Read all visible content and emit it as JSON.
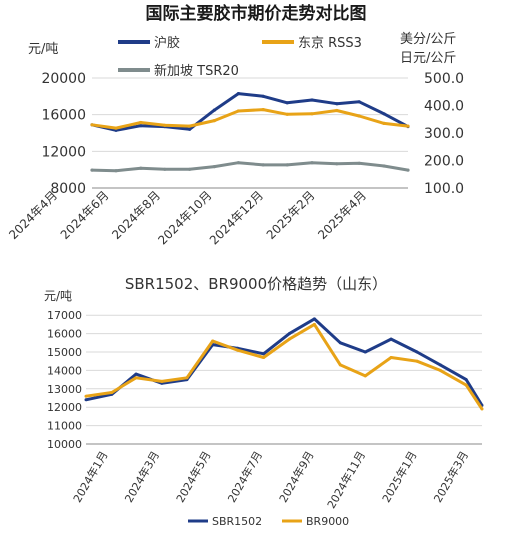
{
  "chart_data": [
    {
      "type": "line",
      "title": "国际主要胶市期价走势对比图",
      "ylabel_left": "元/吨",
      "ylabel_right_line1": "美分/公斤",
      "ylabel_right_line2": "日元/公斤",
      "y_left_ticks": [
        "20000",
        "16000",
        "12000",
        "8000"
      ],
      "y_right_ticks": [
        "500.0",
        "400.0",
        "300.0",
        "200.0",
        "100.0"
      ],
      "ylim_left": [
        8000,
        20000
      ],
      "ylim_right": [
        100,
        500
      ],
      "x_ticks": [
        "2024年4月",
        "2024年6月",
        "2024年8月",
        "2024年10月",
        "2024年12月",
        "2025年2月",
        "2025年4月"
      ],
      "x": [
        "2024-04-01",
        "2024-05-01",
        "2024-06-01",
        "2024-07-01",
        "2024-08-01",
        "2024-09-01",
        "2024-10-01",
        "2024-11-01",
        "2024-12-01",
        "2025-01-01",
        "2025-02-01",
        "2025-03-01",
        "2025-04-01",
        "2025-05-01"
      ],
      "grid": true,
      "legend_position": "top",
      "series": [
        {
          "name": "沪胶",
          "axis": "left",
          "color": "#1f3c88",
          "values": [
            14900,
            14300,
            14800,
            14700,
            14400,
            16500,
            18300,
            18000,
            17300,
            17600,
            17200,
            17400,
            16100,
            14700
          ]
        },
        {
          "name": "东京 RSS3",
          "axis": "right",
          "color": "#e8a317",
          "values": [
            330,
            318,
            338,
            328,
            325,
            345,
            380,
            385,
            368,
            370,
            382,
            362,
            335,
            325
          ]
        },
        {
          "name": "新加坡 TSR20",
          "axis": "right",
          "color": "#7f8c8d",
          "values": [
            165,
            163,
            172,
            168,
            168,
            178,
            192,
            184,
            184,
            192,
            188,
            190,
            180,
            165
          ]
        }
      ]
    },
    {
      "type": "line",
      "title": "SBR1502、BR9000价格趋势（山东）",
      "ylabel": "元/吨",
      "y_ticks": [
        "17000",
        "16000",
        "15000",
        "14000",
        "13000",
        "12000",
        "11000",
        "10000"
      ],
      "ylim": [
        10000,
        17500
      ],
      "x_ticks": [
        "2024年1月",
        "2024年3月",
        "2024年5月",
        "2024年7月",
        "2024年9月",
        "2024年11月",
        "2025年1月",
        "2025年3月"
      ],
      "x": [
        "2024-01-01",
        "2024-02-01",
        "2024-03-01",
        "2024-04-01",
        "2024-05-01",
        "2024-06-01",
        "2024-07-01",
        "2024-08-01",
        "2024-09-01",
        "2024-10-01",
        "2024-11-01",
        "2024-12-01",
        "2025-01-01",
        "2025-02-01",
        "2025-03-01",
        "2025-04-01",
        "2025-04-20"
      ],
      "grid": true,
      "legend_position": "bottom",
      "series": [
        {
          "name": "SBR1502",
          "color": "#1f3c88",
          "values": [
            12400,
            12700,
            13800,
            13300,
            13500,
            15400,
            15200,
            14900,
            16000,
            16800,
            15500,
            15000,
            15700,
            15000,
            14300,
            13500,
            12100
          ]
        },
        {
          "name": "BR9000",
          "color": "#e8a317",
          "values": [
            12600,
            12800,
            13600,
            13400,
            13600,
            15600,
            15100,
            14700,
            15700,
            16500,
            14300,
            13700,
            14700,
            14500,
            14000,
            13200,
            11900
          ]
        }
      ]
    }
  ]
}
